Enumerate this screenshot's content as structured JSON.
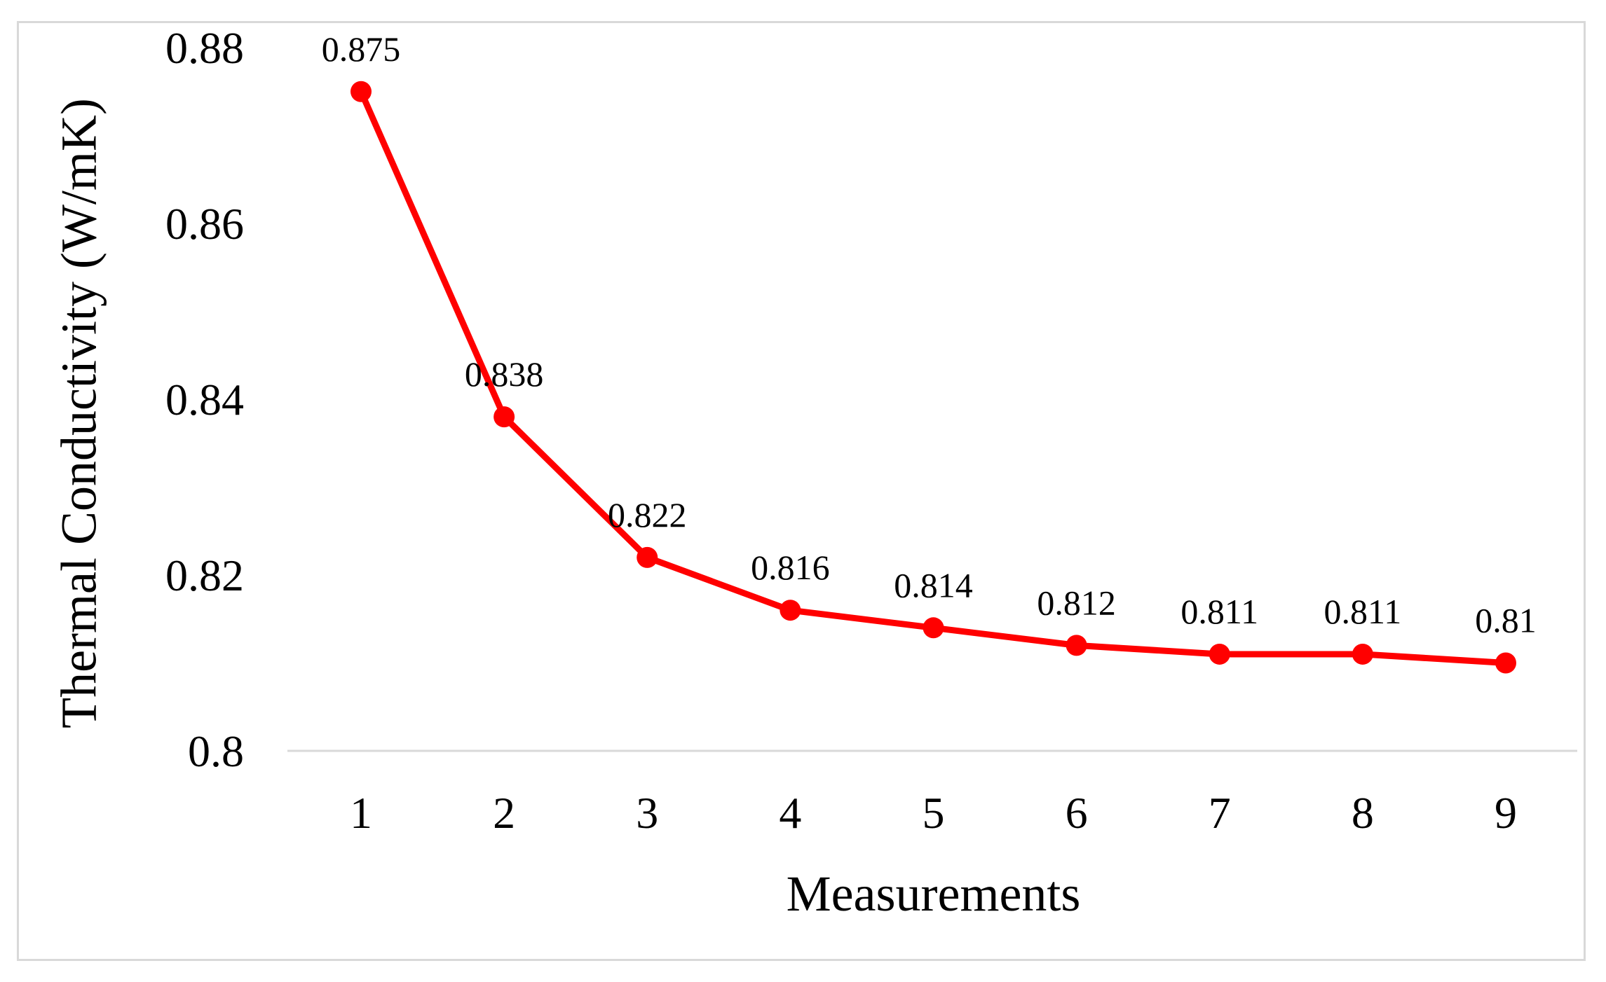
{
  "chart_data": {
    "type": "line",
    "title": "",
    "xlabel": "Measurements",
    "ylabel": "Thermal Conductivity (W/mK)",
    "categories": [
      "1",
      "2",
      "3",
      "4",
      "5",
      "6",
      "7",
      "8",
      "9"
    ],
    "series": [
      {
        "values": [
          0.875,
          0.838,
          0.822,
          0.816,
          0.814,
          0.812,
          0.811,
          0.811,
          0.81
        ],
        "data_labels": [
          "0.875",
          "0.838",
          "0.822",
          "0.816",
          "0.814",
          "0.812",
          "0.811",
          "0.811",
          "0.81"
        ],
        "color": "#ff0000",
        "marker": "circle"
      }
    ],
    "ylim": [
      0.8,
      0.88
    ],
    "yticks": [
      "0.8",
      "0.82",
      "0.84",
      "0.86",
      "0.88"
    ],
    "grid": false,
    "legend": "none"
  }
}
